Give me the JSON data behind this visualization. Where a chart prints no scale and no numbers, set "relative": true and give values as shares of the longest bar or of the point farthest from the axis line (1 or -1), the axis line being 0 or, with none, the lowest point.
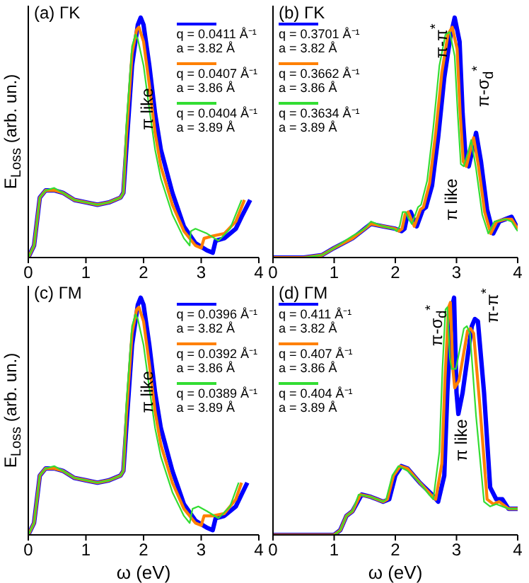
{
  "chart_data": [
    {
      "type": "line",
      "title": "(a) ΓK",
      "ylabel": "E$_{Loss}$ (arb. un.)",
      "relative": true,
      "xlim": [
        0,
        4
      ],
      "xticks": [
        0,
        1,
        2,
        3,
        4
      ],
      "tick_labels": "x",
      "legend": "top right",
      "annotations": [
        {
          "text": "π like",
          "x": 2.05,
          "y": 0.62
        }
      ],
      "series": [
        {
          "name": "q = 0.0411 Å⁻¹\na = 3.82 Å",
          "color": "#0000ff",
          "x": [
            0,
            0.1,
            0.2,
            0.3,
            0.45,
            0.6,
            0.8,
            1.0,
            1.2,
            1.4,
            1.6,
            1.65,
            1.7,
            1.8,
            1.9,
            1.95,
            2.0,
            2.1,
            2.2,
            2.3,
            2.5,
            2.7,
            2.9,
            3.1,
            3.2,
            3.25,
            3.4,
            3.6,
            3.7,
            3.85
          ],
          "values": [
            0,
            0.05,
            0.25,
            0.28,
            0.28,
            0.27,
            0.24,
            0.23,
            0.22,
            0.23,
            0.25,
            0.27,
            0.45,
            0.8,
            0.97,
            1.0,
            0.97,
            0.8,
            0.6,
            0.45,
            0.27,
            0.13,
            0.06,
            0.03,
            0.02,
            0.07,
            0.08,
            0.12,
            0.17,
            0.24
          ]
        },
        {
          "name": "q = 0.0407 Å⁻¹\na = 3.86 Å",
          "color": "#ff8000",
          "x": [
            0,
            0.1,
            0.2,
            0.3,
            0.45,
            0.6,
            0.8,
            1.0,
            1.2,
            1.4,
            1.6,
            1.65,
            1.7,
            1.8,
            1.88,
            1.92,
            2.0,
            2.1,
            2.2,
            2.3,
            2.5,
            2.7,
            2.9,
            3.0,
            3.05,
            3.2,
            3.4,
            3.6,
            3.75
          ],
          "values": [
            0,
            0.05,
            0.25,
            0.28,
            0.28,
            0.27,
            0.24,
            0.23,
            0.22,
            0.23,
            0.25,
            0.27,
            0.5,
            0.85,
            0.95,
            0.96,
            0.9,
            0.72,
            0.52,
            0.38,
            0.22,
            0.11,
            0.05,
            0.04,
            0.08,
            0.09,
            0.1,
            0.15,
            0.24
          ]
        },
        {
          "name": "q = 0.0404 Å⁻¹\na = 3.89 Å",
          "color": "#33dd33",
          "x": [
            0,
            0.1,
            0.2,
            0.3,
            0.45,
            0.6,
            0.8,
            1.0,
            1.2,
            1.4,
            1.6,
            1.65,
            1.7,
            1.8,
            1.86,
            1.9,
            2.0,
            2.1,
            2.2,
            2.3,
            2.5,
            2.7,
            2.8,
            2.82,
            2.9,
            3.1,
            3.3,
            3.5,
            3.7
          ],
          "values": [
            0,
            0.05,
            0.25,
            0.28,
            0.29,
            0.27,
            0.24,
            0.23,
            0.22,
            0.23,
            0.25,
            0.27,
            0.55,
            0.88,
            0.93,
            0.91,
            0.8,
            0.62,
            0.45,
            0.33,
            0.18,
            0.08,
            0.05,
            0.11,
            0.12,
            0.1,
            0.07,
            0.12,
            0.24
          ]
        }
      ]
    },
    {
      "type": "line",
      "title": "(b) ΓK",
      "relative": true,
      "xlim": [
        0,
        4
      ],
      "xticks": [
        0,
        1,
        2,
        3,
        4
      ],
      "tick_labels": "x",
      "legend": "top left",
      "annotations": [
        {
          "text": "π-π$^{*}$",
          "x": 2.72,
          "y": 0.9
        },
        "π-σ$_{d}$$^{*}$",
        "π like"
      ],
      "series": [
        {
          "name": "q = 0.3701 Å⁻¹\na = 3.82 Å",
          "color": "#0000ff",
          "x": [
            0,
            0.5,
            0.8,
            1.0,
            1.3,
            1.5,
            1.6,
            1.8,
            2.0,
            2.1,
            2.15,
            2.2,
            2.25,
            2.3,
            2.35,
            2.45,
            2.5,
            2.6,
            2.7,
            2.8,
            2.9,
            2.97,
            3.05,
            3.1,
            3.15,
            3.2,
            3.28,
            3.32,
            3.4,
            3.5,
            3.6,
            3.7,
            3.8,
            3.9,
            4.0
          ],
          "values": [
            0,
            0,
            0.01,
            0.04,
            0.08,
            0.12,
            0.14,
            0.13,
            0.12,
            0.11,
            0.12,
            0.18,
            0.19,
            0.16,
            0.13,
            0.2,
            0.21,
            0.3,
            0.5,
            0.75,
            0.92,
            1.0,
            0.9,
            0.6,
            0.41,
            0.38,
            0.47,
            0.52,
            0.4,
            0.2,
            0.1,
            0.15,
            0.16,
            0.17,
            0.12
          ]
        },
        {
          "name": "q = 0.3662 Å⁻¹\na = 3.86 Å",
          "color": "#ff8000",
          "x": [
            0,
            0.5,
            0.8,
            1.0,
            1.3,
            1.5,
            1.6,
            1.8,
            2.0,
            2.06,
            2.11,
            2.16,
            2.21,
            2.26,
            2.31,
            2.41,
            2.46,
            2.56,
            2.66,
            2.76,
            2.86,
            2.93,
            3.01,
            3.06,
            3.11,
            3.16,
            3.24,
            3.28,
            3.36,
            3.46,
            3.56,
            3.66,
            3.8,
            3.9,
            4.0
          ],
          "values": [
            0,
            0,
            0.01,
            0.04,
            0.08,
            0.12,
            0.14,
            0.13,
            0.12,
            0.11,
            0.12,
            0.18,
            0.19,
            0.16,
            0.13,
            0.2,
            0.21,
            0.31,
            0.52,
            0.77,
            0.93,
            0.96,
            0.87,
            0.6,
            0.4,
            0.38,
            0.46,
            0.5,
            0.38,
            0.19,
            0.1,
            0.15,
            0.16,
            0.16,
            0.12
          ]
        },
        {
          "name": "q = 0.3634 Å⁻¹\na = 3.89 Å",
          "color": "#33dd33",
          "x": [
            0,
            0.5,
            0.8,
            1.0,
            1.3,
            1.5,
            1.6,
            1.8,
            1.97,
            2.02,
            2.07,
            2.12,
            2.17,
            2.22,
            2.27,
            2.37,
            2.42,
            2.52,
            2.62,
            2.72,
            2.82,
            2.89,
            2.97,
            3.02,
            3.07,
            3.12,
            3.2,
            3.24,
            3.32,
            3.42,
            3.52,
            3.62,
            3.8,
            3.9,
            4.0
          ],
          "values": [
            0,
            0,
            0.01,
            0.04,
            0.09,
            0.12,
            0.15,
            0.13,
            0.12,
            0.11,
            0.13,
            0.19,
            0.19,
            0.16,
            0.14,
            0.21,
            0.22,
            0.32,
            0.54,
            0.8,
            0.93,
            0.94,
            0.84,
            0.6,
            0.39,
            0.38,
            0.45,
            0.49,
            0.37,
            0.18,
            0.1,
            0.15,
            0.16,
            0.15,
            0.11
          ]
        }
      ]
    },
    {
      "type": "line",
      "title": "(c) ΓM",
      "xlabel": "ω (eV)",
      "ylabel": "E$_{Loss}$ (arb. un.)",
      "relative": true,
      "xlim": [
        0,
        4
      ],
      "xticks": [
        0,
        1,
        2,
        3,
        4
      ],
      "tick_labels": "x",
      "legend": "top right",
      "annotations": [
        {
          "text": "π like",
          "x": 2.05,
          "y": 0.6
        }
      ],
      "series": [
        {
          "name": "q = 0.0396 Å⁻¹\na = 3.82 Å",
          "color": "#0000ff",
          "x": [
            0,
            0.1,
            0.2,
            0.3,
            0.45,
            0.6,
            0.8,
            1.0,
            1.2,
            1.4,
            1.6,
            1.65,
            1.7,
            1.8,
            1.9,
            1.95,
            2.0,
            2.1,
            2.2,
            2.3,
            2.5,
            2.7,
            2.9,
            3.1,
            3.2,
            3.25,
            3.4,
            3.6,
            3.7,
            3.8
          ],
          "values": [
            0,
            0.05,
            0.25,
            0.28,
            0.28,
            0.27,
            0.24,
            0.23,
            0.22,
            0.23,
            0.25,
            0.27,
            0.45,
            0.8,
            0.97,
            1.0,
            0.97,
            0.8,
            0.6,
            0.45,
            0.27,
            0.13,
            0.06,
            0.03,
            0.02,
            0.07,
            0.08,
            0.12,
            0.17,
            0.22
          ]
        },
        {
          "name": "q = 0.0392 Å⁻¹\na = 3.86 Å",
          "color": "#ff8000",
          "x": [
            0,
            0.1,
            0.2,
            0.3,
            0.45,
            0.6,
            0.8,
            1.0,
            1.2,
            1.4,
            1.6,
            1.65,
            1.7,
            1.8,
            1.88,
            1.92,
            2.0,
            2.1,
            2.2,
            2.3,
            2.5,
            2.7,
            2.9,
            3.0,
            3.05,
            3.2,
            3.4,
            3.6,
            3.7
          ],
          "values": [
            0,
            0.05,
            0.25,
            0.28,
            0.28,
            0.27,
            0.24,
            0.23,
            0.22,
            0.23,
            0.25,
            0.27,
            0.5,
            0.85,
            0.95,
            0.96,
            0.9,
            0.72,
            0.52,
            0.38,
            0.22,
            0.11,
            0.05,
            0.04,
            0.08,
            0.08,
            0.09,
            0.15,
            0.22
          ]
        },
        {
          "name": "q = 0.0389 Å⁻¹\na = 3.89 Å",
          "color": "#33dd33",
          "x": [
            0,
            0.1,
            0.2,
            0.3,
            0.45,
            0.6,
            0.8,
            1.0,
            1.2,
            1.4,
            1.6,
            1.65,
            1.7,
            1.8,
            1.86,
            1.9,
            2.0,
            2.1,
            2.2,
            2.3,
            2.5,
            2.7,
            2.8,
            2.85,
            2.95,
            3.1,
            3.3,
            3.5,
            3.65
          ],
          "values": [
            0,
            0.05,
            0.25,
            0.28,
            0.29,
            0.27,
            0.24,
            0.23,
            0.22,
            0.23,
            0.25,
            0.27,
            0.55,
            0.88,
            0.93,
            0.91,
            0.8,
            0.62,
            0.45,
            0.33,
            0.18,
            0.08,
            0.05,
            0.11,
            0.12,
            0.1,
            0.07,
            0.12,
            0.22
          ]
        }
      ]
    },
    {
      "type": "line",
      "title": "(d) ΓM",
      "xlabel": "ω (eV)",
      "relative": true,
      "xlim": [
        0,
        4
      ],
      "xticks": [
        0,
        1,
        2,
        3,
        4
      ],
      "tick_labels": "x",
      "legend": "top left",
      "annotations": [
        {
          "text": "π-σ$_{d}$$^{*}$",
          "x": 2.68,
          "y": 0.88
        },
        "π-π$^{*}$",
        "π like"
      ],
      "series": [
        {
          "name": "q = 0.411 Å⁻¹\na = 3.82 Å",
          "color": "#0000ff",
          "x": [
            0,
            1.0,
            1.1,
            1.2,
            1.3,
            1.45,
            1.6,
            1.7,
            1.8,
            1.9,
            2.0,
            2.1,
            2.2,
            2.4,
            2.6,
            2.7,
            2.8,
            2.85,
            2.92,
            2.96,
            3.0,
            3.03,
            3.1,
            3.25,
            3.3,
            3.35,
            3.45,
            3.55,
            3.65,
            3.75,
            3.85,
            4.0
          ],
          "values": [
            0,
            0,
            0.02,
            0.08,
            0.1,
            0.17,
            0.16,
            0.15,
            0.14,
            0.15,
            0.25,
            0.29,
            0.28,
            0.22,
            0.17,
            0.14,
            0.25,
            0.6,
            0.95,
            1.0,
            0.6,
            0.51,
            0.6,
            0.88,
            0.91,
            0.9,
            0.6,
            0.2,
            0.15,
            0.15,
            0.11,
            0.11
          ]
        },
        {
          "name": "q = 0.407 Å⁻¹\na = 3.86 Å",
          "color": "#ff8000",
          "x": [
            0,
            1.0,
            1.1,
            1.2,
            1.3,
            1.43,
            1.6,
            1.7,
            1.8,
            1.87,
            1.97,
            2.08,
            2.2,
            2.4,
            2.58,
            2.66,
            2.76,
            2.81,
            2.87,
            2.9,
            2.94,
            2.97,
            3.04,
            3.18,
            3.23,
            3.28,
            3.38,
            3.5,
            3.6,
            3.7,
            3.85,
            4.0
          ],
          "values": [
            0,
            0,
            0.02,
            0.08,
            0.1,
            0.17,
            0.16,
            0.15,
            0.14,
            0.15,
            0.25,
            0.29,
            0.28,
            0.22,
            0.17,
            0.15,
            0.3,
            0.65,
            0.96,
            0.98,
            0.7,
            0.62,
            0.65,
            0.86,
            0.87,
            0.85,
            0.55,
            0.15,
            0.13,
            0.14,
            0.11,
            0.11
          ]
        },
        {
          "name": "q = 0.404 Å⁻¹\na = 3.89 Å",
          "color": "#33dd33",
          "x": [
            0,
            1.0,
            1.1,
            1.2,
            1.3,
            1.4,
            1.6,
            1.7,
            1.8,
            1.85,
            1.95,
            2.05,
            2.2,
            2.4,
            2.55,
            2.62,
            2.72,
            2.77,
            2.82,
            2.85,
            2.89,
            2.92,
            2.99,
            3.12,
            3.17,
            3.22,
            3.32,
            3.45,
            3.55,
            3.65,
            3.85,
            4.0
          ],
          "values": [
            0,
            0,
            0.02,
            0.08,
            0.1,
            0.17,
            0.16,
            0.15,
            0.14,
            0.15,
            0.25,
            0.29,
            0.27,
            0.22,
            0.17,
            0.15,
            0.35,
            0.7,
            0.95,
            0.96,
            0.75,
            0.7,
            0.7,
            0.87,
            0.88,
            0.85,
            0.5,
            0.14,
            0.12,
            0.13,
            0.11,
            0.11
          ]
        }
      ]
    }
  ]
}
